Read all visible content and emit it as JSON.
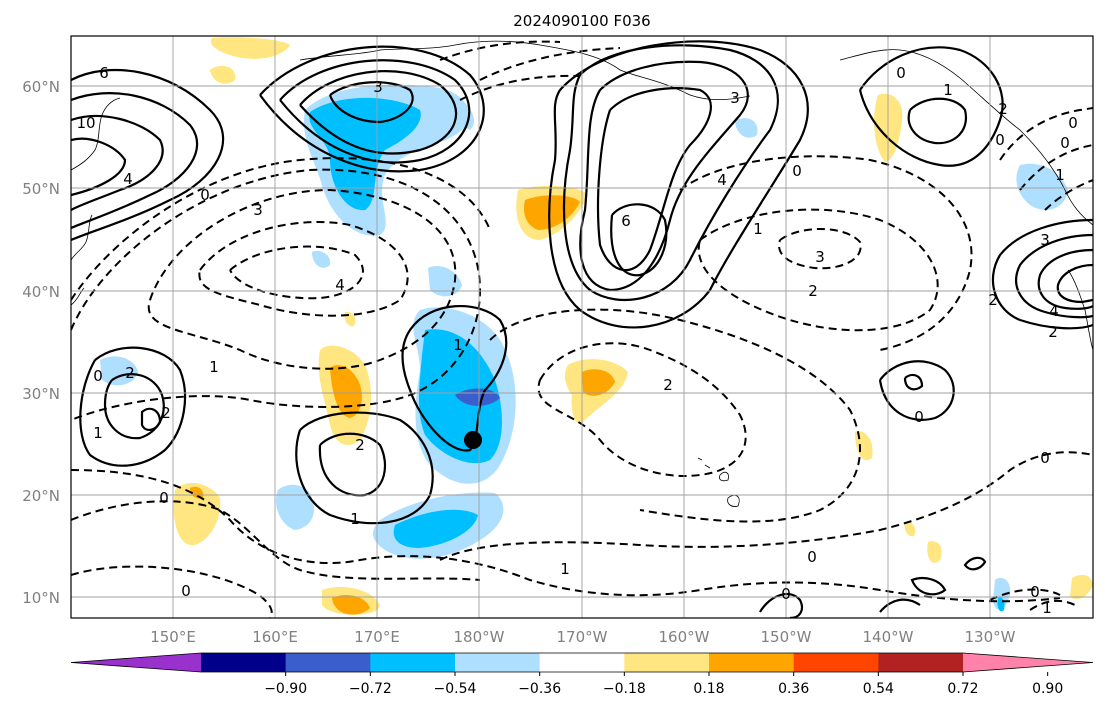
{
  "title": "2024090100 F036",
  "map": {
    "lat_ticks": [
      "60°N",
      "50°N",
      "40°N",
      "30°N",
      "20°N",
      "10°N"
    ],
    "lon_ticks": [
      "150°E",
      "160°E",
      "170°E",
      "180°W",
      "170°W",
      "160°W",
      "150°W",
      "140°W",
      "130°W"
    ],
    "contour_labels": [
      "6",
      "3",
      "10",
      "4",
      "0",
      "3",
      "4",
      "2",
      "1",
      "2",
      "0",
      "1",
      "1",
      "0",
      "0",
      "1",
      "2",
      "3",
      "4",
      "6",
      "0",
      "1",
      "2",
      "3",
      "2",
      "0",
      "2",
      "0",
      "1",
      "1",
      "0",
      "0",
      "3",
      "4",
      "2",
      "0",
      "2",
      "0",
      "0",
      "0",
      "1",
      "0",
      "1"
    ],
    "marker": "storm-center"
  },
  "colorbar": {
    "ticks": [
      "−0.90",
      "−0.72",
      "−0.54",
      "−0.36",
      "−0.18",
      "0.18",
      "0.36",
      "0.54",
      "0.72",
      "0.90"
    ],
    "colors": [
      "#9932cc",
      "#00008b",
      "#3a5fcd",
      "#00bfff",
      "#afdfff",
      "#ffffff",
      "#ffe680",
      "#ffa500",
      "#ff4500",
      "#b22222",
      "#ff82ab"
    ]
  }
}
